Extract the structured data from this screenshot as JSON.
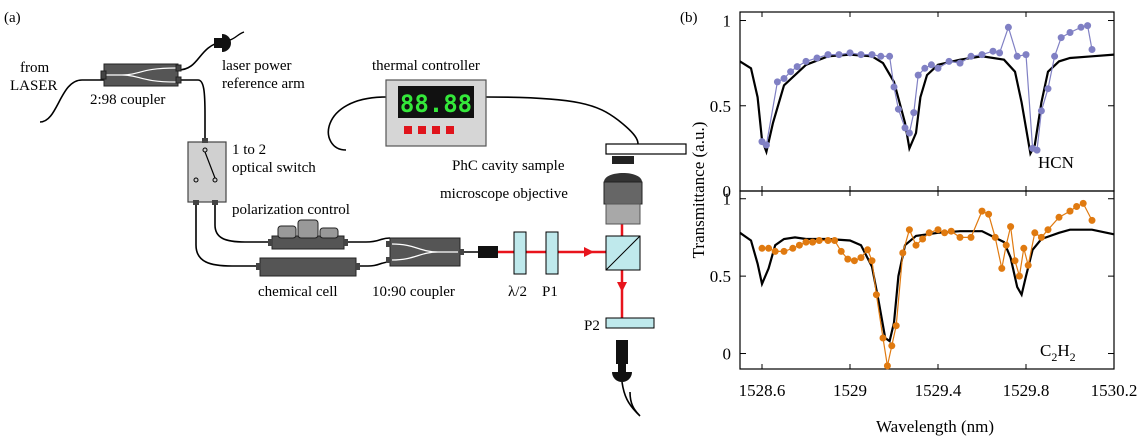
{
  "panel_a": {
    "label": "(a)",
    "labels": {
      "from": "from",
      "laser": "LASER",
      "coupler_2_98": "2:98 coupler",
      "power_ref_1": "laser power",
      "power_ref_2": "reference arm",
      "switch_1": "1 to 2",
      "switch_2": "optical switch",
      "polarization": "polarization control",
      "chemical_cell": "chemical cell",
      "coupler_10_90": "10:90 coupler",
      "thermal": "thermal controller",
      "display": "88.88",
      "phc": "PhC cavity sample",
      "objective": "microscope objective",
      "half_wave": "λ/2",
      "p1": "P1",
      "p2": "P2"
    },
    "colors": {
      "beam": "#e8141c",
      "display_text": "#34e83a",
      "buttons": "#e0141c"
    }
  },
  "panel_b": {
    "label": "(b)",
    "xlabel": "Wavelength (nm)",
    "ylabel": "Transmittance (a.u.)",
    "xticks": [
      "1528.6",
      "1529",
      "1529.4",
      "1529.8",
      "1530.2"
    ],
    "top_yticks": [
      "0",
      "0.5",
      "1"
    ],
    "bottom_yticks": [
      "0",
      "0.5",
      "1"
    ],
    "top_label": "HCN",
    "bottom_label_main": "C",
    "bottom_label_sub1": "2",
    "bottom_label_mid": "H",
    "bottom_label_sub2": "2"
  },
  "chart_data": [
    {
      "type": "line",
      "name_on_chart": "HCN",
      "xlim": [
        1528.5,
        1530.2
      ],
      "ylim": [
        0,
        1.05
      ],
      "grid": false,
      "series": [
        {
          "kind": "fit",
          "color": "#000000",
          "x": [
            1528.5,
            1528.55,
            1528.58,
            1528.6,
            1528.62,
            1528.65,
            1528.7,
            1528.8,
            1528.9,
            1529.0,
            1529.1,
            1529.15,
            1529.2,
            1529.25,
            1529.27,
            1529.3,
            1529.32,
            1529.35,
            1529.4,
            1529.5,
            1529.6,
            1529.7,
            1529.75,
            1529.78,
            1529.82,
            1529.84,
            1529.87,
            1529.9,
            1529.95,
            1530.0,
            1530.1,
            1530.2
          ],
          "y": [
            0.76,
            0.72,
            0.55,
            0.3,
            0.23,
            0.4,
            0.62,
            0.74,
            0.79,
            0.8,
            0.79,
            0.75,
            0.64,
            0.4,
            0.25,
            0.34,
            0.55,
            0.68,
            0.74,
            0.77,
            0.79,
            0.77,
            0.7,
            0.52,
            0.22,
            0.27,
            0.52,
            0.7,
            0.76,
            0.78,
            0.79,
            0.8
          ]
        },
        {
          "kind": "measured",
          "color": "#8080c4",
          "x": [
            1528.6,
            1528.62,
            1528.67,
            1528.7,
            1528.73,
            1528.76,
            1528.8,
            1528.85,
            1528.9,
            1528.95,
            1529.0,
            1529.05,
            1529.1,
            1529.14,
            1529.18,
            1529.2,
            1529.22,
            1529.25,
            1529.27,
            1529.29,
            1529.31,
            1529.34,
            1529.37,
            1529.4,
            1529.45,
            1529.5,
            1529.55,
            1529.6,
            1529.65,
            1529.68,
            1529.72,
            1529.76,
            1529.8,
            1529.83,
            1529.85,
            1529.87,
            1529.9,
            1529.93,
            1529.96,
            1530.0,
            1530.05,
            1530.08,
            1530.1
          ],
          "y": [
            0.29,
            0.27,
            0.64,
            0.66,
            0.7,
            0.73,
            0.76,
            0.78,
            0.8,
            0.8,
            0.81,
            0.8,
            0.8,
            0.79,
            0.79,
            0.61,
            0.48,
            0.37,
            0.34,
            0.46,
            0.68,
            0.72,
            0.74,
            0.72,
            0.76,
            0.75,
            0.79,
            0.8,
            0.82,
            0.81,
            0.96,
            0.79,
            0.8,
            0.25,
            0.24,
            0.47,
            0.6,
            0.79,
            0.9,
            0.93,
            0.96,
            0.97,
            0.83
          ]
        }
      ]
    },
    {
      "type": "line",
      "name_on_chart": "C2H2",
      "xlim": [
        1528.5,
        1530.2
      ],
      "ylim": [
        -0.1,
        1.05
      ],
      "grid": false,
      "series": [
        {
          "kind": "fit",
          "color": "#000000",
          "x": [
            1528.5,
            1528.55,
            1528.58,
            1528.6,
            1528.63,
            1528.66,
            1528.7,
            1528.75,
            1528.8,
            1528.9,
            1529.0,
            1529.05,
            1529.1,
            1529.13,
            1529.16,
            1529.18,
            1529.2,
            1529.22,
            1529.25,
            1529.3,
            1529.4,
            1529.5,
            1529.6,
            1529.7,
            1529.73,
            1529.76,
            1529.78,
            1529.8,
            1529.83,
            1529.87,
            1529.95,
            1530.0,
            1530.1,
            1530.2
          ],
          "y": [
            0.78,
            0.73,
            0.58,
            0.45,
            0.55,
            0.7,
            0.74,
            0.75,
            0.74,
            0.74,
            0.73,
            0.7,
            0.56,
            0.34,
            0.1,
            0.08,
            0.2,
            0.5,
            0.7,
            0.76,
            0.78,
            0.79,
            0.79,
            0.72,
            0.62,
            0.43,
            0.38,
            0.5,
            0.67,
            0.74,
            0.78,
            0.8,
            0.8,
            0.77
          ]
        },
        {
          "kind": "measured",
          "color": "#e07a10",
          "x": [
            1528.6,
            1528.63,
            1528.66,
            1528.7,
            1528.74,
            1528.77,
            1528.8,
            1528.83,
            1528.86,
            1528.9,
            1528.93,
            1528.96,
            1528.99,
            1529.02,
            1529.05,
            1529.08,
            1529.1,
            1529.12,
            1529.15,
            1529.17,
            1529.19,
            1529.21,
            1529.24,
            1529.27,
            1529.3,
            1529.33,
            1529.36,
            1529.4,
            1529.43,
            1529.46,
            1529.5,
            1529.55,
            1529.6,
            1529.63,
            1529.66,
            1529.69,
            1529.71,
            1529.73,
            1529.75,
            1529.77,
            1529.79,
            1529.81,
            1529.84,
            1529.87,
            1529.9,
            1529.95,
            1530.0,
            1530.03,
            1530.06,
            1530.1
          ],
          "y": [
            0.68,
            0.68,
            0.66,
            0.66,
            0.68,
            0.7,
            0.72,
            0.72,
            0.73,
            0.73,
            0.73,
            0.66,
            0.61,
            0.6,
            0.62,
            0.67,
            0.6,
            0.38,
            0.1,
            -0.08,
            0.05,
            0.18,
            0.65,
            0.8,
            0.7,
            0.74,
            0.78,
            0.8,
            0.78,
            0.79,
            0.75,
            0.75,
            0.92,
            0.9,
            0.75,
            0.55,
            0.7,
            0.82,
            0.6,
            0.5,
            0.68,
            0.57,
            0.78,
            0.75,
            0.8,
            0.88,
            0.92,
            0.95,
            0.97,
            0.86
          ]
        }
      ]
    }
  ]
}
